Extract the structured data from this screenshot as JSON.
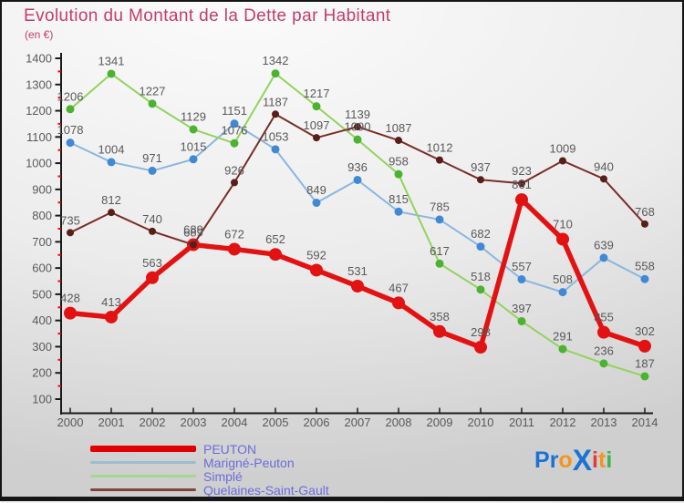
{
  "title": "Evolution du Montant de la Dette par Habitant",
  "subtitle": "(en €)",
  "chart_data": {
    "type": "line",
    "title": "Evolution du Montant de la Dette par Habitant",
    "subtitle": "(en €)",
    "categories": [
      "2000",
      "2001",
      "2002",
      "2003",
      "2004",
      "2005",
      "2006",
      "2007",
      "2008",
      "2009",
      "2010",
      "2011",
      "2012",
      "2013",
      "2014"
    ],
    "series": [
      {
        "name": "PEUTON",
        "color": "#e31212",
        "dot_color": "#e31212",
        "line_width": 5.5,
        "dot_radius": 7,
        "values": [
          428,
          413,
          563,
          689,
          672,
          652,
          592,
          531,
          467,
          358,
          298,
          861,
          710,
          355,
          302
        ]
      },
      {
        "name": "Marigné-Peuton",
        "color": "#8ab7e0",
        "dot_color": "#4189d4",
        "line_width": 2,
        "dot_radius": 4.5,
        "values": [
          1078,
          1004,
          971,
          1015,
          1151,
          1053,
          849,
          936,
          815,
          785,
          682,
          557,
          508,
          639,
          558
        ]
      },
      {
        "name": "Simplé",
        "color": "#92d45c",
        "dot_color": "#4cb232",
        "line_width": 2,
        "dot_radius": 4.5,
        "values": [
          1206,
          1341,
          1227,
          1129,
          1076,
          1342,
          1217,
          1090,
          958,
          617,
          518,
          397,
          291,
          236,
          187
        ]
      },
      {
        "name": "Quelaines-Saint-Gault",
        "color": "#7b2c26",
        "dot_color": "#571f1a",
        "line_width": 2,
        "dot_radius": 4,
        "values": [
          735,
          812,
          740,
          689,
          926,
          1187,
          1097,
          1139,
          1087,
          1012,
          937,
          923,
          1009,
          940,
          768
        ]
      }
    ],
    "draw_order": [
      1,
      2,
      0,
      3
    ],
    "xlabel": "",
    "ylabel": "",
    "ylim": [
      100,
      1400
    ],
    "y_major_step": 100,
    "y_minor_step": 50,
    "grid": false,
    "legend_position": "bottom-left",
    "axis_color": "#1a1a1a",
    "minor_tick_color": "#ff0000",
    "label_color": "#595959"
  },
  "legend": {
    "items": [
      {
        "label": "PEUTON",
        "swatch_color": "#e00000",
        "thick": true
      },
      {
        "label": "Marigné-Peuton",
        "swatch_color": "#9bbdd4",
        "thick": false
      },
      {
        "label": "Simplé",
        "swatch_color": "#a4d88e",
        "thick": false
      },
      {
        "label": "Quelaines-Saint-Gault",
        "swatch_color": "#7d453e",
        "thick": false
      }
    ]
  },
  "logo": {
    "name": "Proxiti",
    "letters": [
      {
        "ch": "P",
        "color": "#1a73d4",
        "big": false
      },
      {
        "ch": "r",
        "color": "#1a73d4",
        "big": false
      },
      {
        "ch": "o",
        "color": "#f5941f",
        "big": false
      },
      {
        "ch": "X",
        "color": "#1a73d4",
        "big": true
      },
      {
        "ch": "i",
        "color": "#e23b3b",
        "big": false
      },
      {
        "ch": "t",
        "color": "#f5941f",
        "big": false
      },
      {
        "ch": "i",
        "color": "#3cb54a",
        "big": false
      }
    ]
  }
}
